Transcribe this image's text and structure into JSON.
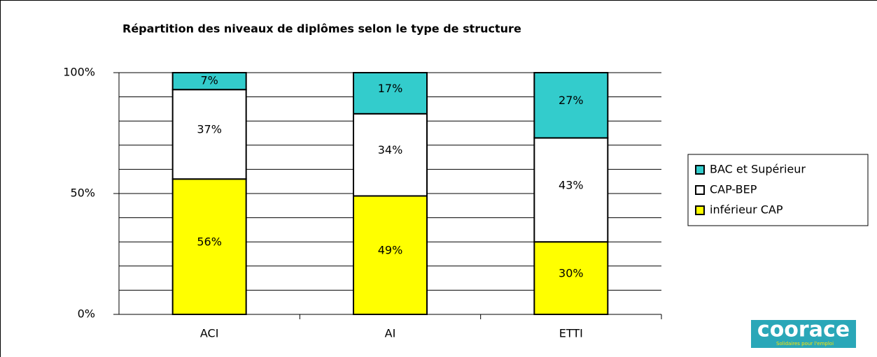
{
  "chart_data": {
    "type": "stacked_bar",
    "title": "Répartition des niveaux de diplômes selon le type de structure",
    "categories": [
      "ACI",
      "AI",
      "ETTI"
    ],
    "series": [
      {
        "name": "inférieur CAP",
        "color": "#ffff00",
        "values": [
          56,
          49,
          30
        ],
        "value_labels": [
          "56%",
          "49%",
          "30%"
        ]
      },
      {
        "name": "CAP-BEP",
        "color": "#ffffff",
        "values": [
          37,
          34,
          43
        ],
        "value_labels": [
          "37%",
          "34%",
          "43%"
        ]
      },
      {
        "name": "BAC et Supérieur",
        "color": "#33cccc",
        "values": [
          7,
          17,
          27
        ],
        "value_labels": [
          "7%",
          "17%",
          "27%"
        ]
      }
    ],
    "ylim": [
      0,
      100
    ],
    "yticks": [
      {
        "value": 0,
        "label": "0%"
      },
      {
        "value": 50,
        "label": "50%"
      },
      {
        "value": 100,
        "label": "100%"
      }
    ],
    "grid_lines": [
      10,
      20,
      30,
      40,
      50,
      60,
      70,
      80,
      90,
      100
    ],
    "grid": true,
    "legend": "right",
    "logo": {
      "text": "coorace",
      "tagline": "Solidaires pour l'emploi"
    }
  }
}
